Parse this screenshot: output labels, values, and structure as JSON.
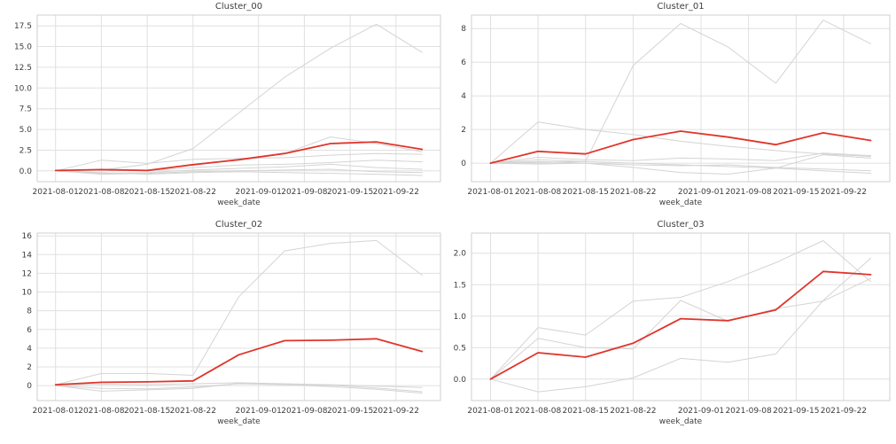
{
  "figure": {
    "background_color": "#ffffff",
    "grid_color": "#e0e0e0",
    "spine_color": "#cfcfcf",
    "text_color": "#3d3d3d",
    "highlight_line_color": "#e0352b",
    "member_line_color": "#d4d4d4",
    "x_axis_label": "week_date",
    "x_dates": [
      "2021-08-01",
      "2021-08-08",
      "2021-08-15",
      "2021-08-22",
      "2021-08-29",
      "2021-09-05",
      "2021-09-12",
      "2021-09-19",
      "2021-09-26"
    ],
    "x_day_offsets": [
      0,
      7,
      14,
      21,
      28,
      35,
      42,
      49,
      56
    ],
    "x_tick_labels": [
      "2021-08-01",
      "2021-08-08",
      "2021-08-15",
      "2021-08-22",
      "2021-09-01",
      "2021-09-08",
      "2021-09-15",
      "2021-09-22"
    ],
    "x_tick_day_offsets": [
      0,
      7,
      14,
      21,
      31,
      38,
      45,
      52
    ],
    "xlim": [
      -2.8,
      58.8
    ]
  },
  "chart_data": [
    {
      "type": "line",
      "title": "Cluster_00",
      "xlabel": "week_date",
      "x": [
        "2021-08-01",
        "2021-08-08",
        "2021-08-15",
        "2021-08-22",
        "2021-08-29",
        "2021-09-05",
        "2021-09-12",
        "2021-09-19",
        "2021-09-26"
      ],
      "ylim": [
        -1.3,
        18.8
      ],
      "y_ticks": [
        0.0,
        2.5,
        5.0,
        7.5,
        10.0,
        12.5,
        15.0,
        17.5
      ],
      "y_tick_labels": [
        "0.0",
        "2.5",
        "5.0",
        "7.5",
        "10.0",
        "12.5",
        "15.0",
        "17.5"
      ],
      "grid": true,
      "legend": "none",
      "series": [
        {
          "name": "member_1",
          "role": "member",
          "color": "#d4d4d4",
          "values": [
            0,
            0.1,
            0.8,
            2.7,
            7.0,
            11.3,
            14.8,
            17.7,
            14.3
          ]
        },
        {
          "name": "member_2",
          "role": "member",
          "color": "#d4d4d4",
          "values": [
            0,
            0.2,
            0.1,
            0.7,
            1.3,
            2.1,
            4.1,
            3.3,
            2.3
          ]
        },
        {
          "name": "member_3",
          "role": "member",
          "color": "#d4d4d4",
          "values": [
            0,
            1.3,
            0.9,
            1.4,
            1.5,
            1.6,
            1.9,
            2.1,
            2.0
          ]
        },
        {
          "name": "member_4",
          "role": "member",
          "color": "#d4d4d4",
          "values": [
            0,
            0.1,
            0.0,
            0.4,
            0.7,
            0.8,
            1.0,
            1.3,
            1.1
          ]
        },
        {
          "name": "member_5",
          "role": "member",
          "color": "#d4d4d4",
          "values": [
            0,
            -0.3,
            -0.2,
            0.1,
            0.3,
            0.5,
            0.8,
            0.4,
            0.2
          ]
        },
        {
          "name": "member_6",
          "role": "member",
          "color": "#d4d4d4",
          "values": [
            0,
            -0.4,
            -0.3,
            -0.1,
            0.0,
            0.1,
            0.2,
            -0.1,
            -0.2
          ]
        },
        {
          "name": "member_7",
          "role": "member",
          "color": "#d4d4d4",
          "values": [
            0,
            -0.2,
            -0.4,
            -0.2,
            -0.1,
            -0.2,
            -0.3,
            -0.4,
            -0.55
          ]
        },
        {
          "name": "cluster_mean",
          "role": "highlight",
          "color": "#e0352b",
          "values": [
            0.05,
            0.15,
            0.05,
            0.75,
            1.35,
            2.1,
            3.3,
            3.5,
            2.6
          ]
        }
      ]
    },
    {
      "type": "line",
      "title": "Cluster_01",
      "xlabel": "week_date",
      "x": [
        "2021-08-01",
        "2021-08-08",
        "2021-08-15",
        "2021-08-22",
        "2021-08-29",
        "2021-09-05",
        "2021-09-12",
        "2021-09-19",
        "2021-09-26"
      ],
      "ylim": [
        -1.1,
        8.8
      ],
      "y_ticks": [
        0,
        2,
        4,
        6,
        8
      ],
      "y_tick_labels": [
        "0",
        "2",
        "4",
        "6",
        "8"
      ],
      "grid": true,
      "legend": "none",
      "series": [
        {
          "name": "member_1",
          "role": "member",
          "color": "#d4d4d4",
          "values": [
            0,
            0.2,
            0.1,
            5.8,
            8.3,
            6.9,
            4.75,
            8.5,
            7.1
          ]
        },
        {
          "name": "member_2",
          "role": "member",
          "color": "#d4d4d4",
          "values": [
            0,
            2.45,
            2.0,
            1.7,
            1.3,
            1.0,
            0.75,
            0.55,
            0.4
          ]
        },
        {
          "name": "member_3",
          "role": "member",
          "color": "#d4d4d4",
          "values": [
            0,
            0.35,
            0.2,
            0.15,
            0.3,
            0.25,
            0.15,
            0.6,
            0.45
          ]
        },
        {
          "name": "member_4",
          "role": "member",
          "color": "#d4d4d4",
          "values": [
            0,
            0.1,
            0.0,
            -0.25,
            -0.55,
            -0.65,
            -0.3,
            0.5,
            0.3
          ]
        },
        {
          "name": "member_5",
          "role": "member",
          "color": "#d4d4d4",
          "values": [
            0,
            0.05,
            0.1,
            0.0,
            -0.1,
            -0.2,
            -0.3,
            -0.45,
            -0.6
          ]
        },
        {
          "name": "member_6",
          "role": "member",
          "color": "#d4d4d4",
          "values": [
            0,
            -0.05,
            0.0,
            -0.1,
            -0.15,
            -0.1,
            -0.25,
            -0.35,
            -0.45
          ]
        },
        {
          "name": "cluster_mean",
          "role": "highlight",
          "color": "#e0352b",
          "values": [
            0,
            0.7,
            0.55,
            1.4,
            1.9,
            1.55,
            1.1,
            1.8,
            1.35
          ]
        }
      ]
    },
    {
      "type": "line",
      "title": "Cluster_02",
      "xlabel": "week_date",
      "x": [
        "2021-08-01",
        "2021-08-08",
        "2021-08-15",
        "2021-08-22",
        "2021-08-29",
        "2021-09-05",
        "2021-09-12",
        "2021-09-19",
        "2021-09-26"
      ],
      "ylim": [
        -1.6,
        16.3
      ],
      "y_ticks": [
        0,
        2,
        4,
        6,
        8,
        10,
        12,
        14,
        16
      ],
      "y_tick_labels": [
        "0",
        "2",
        "4",
        "6",
        "8",
        "10",
        "12",
        "14",
        "16"
      ],
      "grid": true,
      "legend": "none",
      "series": [
        {
          "name": "member_1",
          "role": "member",
          "color": "#d4d4d4",
          "values": [
            0.1,
            1.3,
            1.3,
            1.1,
            9.5,
            14.4,
            15.2,
            15.5,
            11.8
          ]
        },
        {
          "name": "member_2",
          "role": "member",
          "color": "#d4d4d4",
          "values": [
            0,
            -0.6,
            -0.45,
            -0.3,
            0.25,
            0.15,
            0.05,
            -0.25,
            -0.65
          ]
        },
        {
          "name": "member_3",
          "role": "member",
          "color": "#d4d4d4",
          "values": [
            0.05,
            0.15,
            0.1,
            0.2,
            0.3,
            0.2,
            0.1,
            -0.05,
            -0.2
          ]
        },
        {
          "name": "member_4",
          "role": "member",
          "color": "#d4d4d4",
          "values": [
            0,
            -0.3,
            -0.35,
            -0.15,
            0.2,
            0.1,
            -0.1,
            -0.4,
            -0.8
          ]
        },
        {
          "name": "cluster_mean",
          "role": "highlight",
          "color": "#e0352b",
          "values": [
            0.1,
            0.35,
            0.4,
            0.5,
            3.3,
            4.8,
            4.85,
            5.0,
            3.65
          ]
        }
      ]
    },
    {
      "type": "line",
      "title": "Cluster_03",
      "xlabel": "week_date",
      "x": [
        "2021-08-01",
        "2021-08-08",
        "2021-08-15",
        "2021-08-22",
        "2021-08-29",
        "2021-09-05",
        "2021-09-12",
        "2021-09-19",
        "2021-09-26"
      ],
      "ylim": [
        -0.34,
        2.32
      ],
      "y_ticks": [
        0.0,
        0.5,
        1.0,
        1.5,
        2.0
      ],
      "y_tick_labels": [
        "0.0",
        "0.5",
        "1.0",
        "1.5",
        "2.0"
      ],
      "grid": true,
      "legend": "none",
      "series": [
        {
          "name": "member_1",
          "role": "member",
          "color": "#d4d4d4",
          "values": [
            0,
            0.82,
            0.7,
            1.24,
            1.3,
            1.55,
            1.85,
            2.2,
            1.55
          ]
        },
        {
          "name": "member_2",
          "role": "member",
          "color": "#d4d4d4",
          "values": [
            0,
            0.65,
            0.5,
            0.48,
            1.25,
            0.92,
            1.12,
            1.24,
            1.6
          ]
        },
        {
          "name": "member_3",
          "role": "member",
          "color": "#d4d4d4",
          "values": [
            0,
            -0.2,
            -0.12,
            0.02,
            0.33,
            0.27,
            0.4,
            1.25,
            1.92
          ]
        },
        {
          "name": "cluster_mean",
          "role": "highlight",
          "color": "#e0352b",
          "values": [
            0.0,
            0.42,
            0.35,
            0.57,
            0.96,
            0.93,
            1.1,
            1.71,
            1.66
          ]
        }
      ]
    }
  ]
}
